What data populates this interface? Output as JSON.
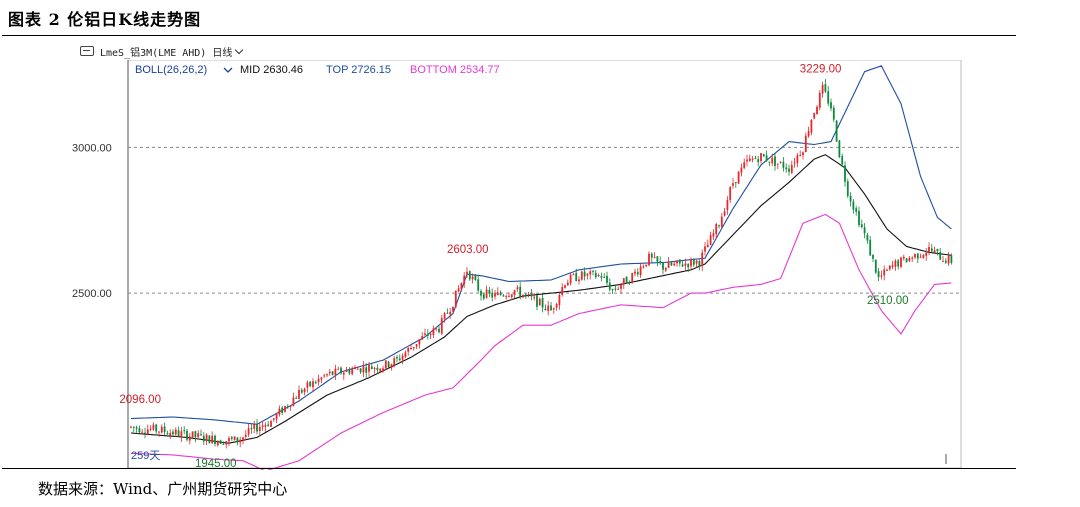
{
  "figure_title": "图表 2 伦铝日K线走势图",
  "toolbar": {
    "symbol": "LmeS_铝3M(LME AHD)",
    "period": "日线"
  },
  "indicator": {
    "name": "BOLL(26,26,2)",
    "mid_label": "MID 2630.46",
    "top_label": "TOP 2726.15",
    "bottom_label": "BOTTOM 2534.77"
  },
  "colors": {
    "up": "#e8262c",
    "down": "#0a8a3a",
    "mid": "#111111",
    "top": "#1f4fa0",
    "bottom": "#e43ad2",
    "annotation_high": "#d0202a",
    "annotation_low": "#1c7a2a",
    "axis_text": "#333333"
  },
  "footer": "数据来源：Wind、广州期货研究中心",
  "chart_data": {
    "type": "candlestick",
    "y_ticks": [
      "3000.00",
      "2500.00"
    ],
    "y_tick_values": [
      3000,
      2500
    ],
    "ylim": [
      1900,
      3300
    ],
    "bar_count_label": "259天",
    "grid": "horizontal dashed",
    "annotations": [
      {
        "text": "3229.00",
        "value": 3229,
        "kind": "high"
      },
      {
        "text": "2603.00",
        "value": 2603,
        "kind": "high"
      },
      {
        "text": "2096.00",
        "value": 2096,
        "kind": "high"
      },
      {
        "text": "2510.00",
        "value": 2510,
        "kind": "low"
      },
      {
        "text": "1945.00",
        "value": 1945,
        "kind": "low"
      }
    ],
    "close_anchors": [
      [
        0,
        2040
      ],
      [
        10,
        2030
      ],
      [
        25,
        2005
      ],
      [
        32,
        1995
      ],
      [
        38,
        1995
      ],
      [
        45,
        2040
      ],
      [
        50,
        2060
      ],
      [
        60,
        2160
      ],
      [
        70,
        2220
      ],
      [
        80,
        2240
      ],
      [
        90,
        2250
      ],
      [
        95,
        2270
      ],
      [
        103,
        2340
      ],
      [
        110,
        2380
      ],
      [
        115,
        2470
      ],
      [
        120,
        2580
      ],
      [
        125,
        2500
      ],
      [
        130,
        2490
      ],
      [
        137,
        2510
      ],
      [
        145,
        2470
      ],
      [
        150,
        2440
      ],
      [
        155,
        2540
      ],
      [
        160,
        2560
      ],
      [
        168,
        2560
      ],
      [
        172,
        2510
      ],
      [
        178,
        2550
      ],
      [
        185,
        2620
      ],
      [
        190,
        2590
      ],
      [
        197,
        2600
      ],
      [
        203,
        2610
      ],
      [
        210,
        2740
      ],
      [
        215,
        2880
      ],
      [
        220,
        2950
      ],
      [
        225,
        2970
      ],
      [
        230,
        2950
      ],
      [
        235,
        2930
      ],
      [
        240,
        3000
      ],
      [
        243,
        3100
      ],
      [
        247,
        3200
      ],
      [
        250,
        3140
      ],
      [
        253,
        2980
      ],
      [
        256,
        2850
      ],
      [
        262,
        2700
      ],
      [
        267,
        2550
      ],
      [
        273,
        2600
      ],
      [
        278,
        2620
      ],
      [
        285,
        2650
      ],
      [
        290,
        2620
      ],
      [
        293,
        2610
      ]
    ],
    "mid_anchors": [
      [
        0,
        2020
      ],
      [
        20,
        2005
      ],
      [
        35,
        1985
      ],
      [
        45,
        2005
      ],
      [
        55,
        2060
      ],
      [
        70,
        2150
      ],
      [
        85,
        2210
      ],
      [
        100,
        2280
      ],
      [
        112,
        2350
      ],
      [
        120,
        2420
      ],
      [
        130,
        2460
      ],
      [
        140,
        2490
      ],
      [
        150,
        2500
      ],
      [
        160,
        2510
      ],
      [
        175,
        2530
      ],
      [
        190,
        2560
      ],
      [
        200,
        2580
      ],
      [
        205,
        2600
      ],
      [
        215,
        2700
      ],
      [
        225,
        2800
      ],
      [
        235,
        2880
      ],
      [
        244,
        2960
      ],
      [
        248,
        2975
      ],
      [
        255,
        2930
      ],
      [
        262,
        2840
      ],
      [
        270,
        2720
      ],
      [
        277,
        2660
      ],
      [
        285,
        2640
      ],
      [
        293,
        2630
      ]
    ],
    "top_anchors": [
      [
        0,
        2070
      ],
      [
        15,
        2075
      ],
      [
        30,
        2065
      ],
      [
        45,
        2050
      ],
      [
        60,
        2130
      ],
      [
        75,
        2230
      ],
      [
        90,
        2270
      ],
      [
        105,
        2350
      ],
      [
        115,
        2430
      ],
      [
        120,
        2565
      ],
      [
        125,
        2560
      ],
      [
        135,
        2540
      ],
      [
        150,
        2545
      ],
      [
        160,
        2580
      ],
      [
        175,
        2600
      ],
      [
        190,
        2605
      ],
      [
        205,
        2620
      ],
      [
        215,
        2790
      ],
      [
        225,
        2940
      ],
      [
        235,
        3020
      ],
      [
        244,
        3010
      ],
      [
        250,
        3020
      ],
      [
        262,
        3260
      ],
      [
        268,
        3280
      ],
      [
        275,
        3150
      ],
      [
        282,
        2900
      ],
      [
        288,
        2760
      ],
      [
        293,
        2720
      ]
    ],
    "bottom_anchors": [
      [
        0,
        1950
      ],
      [
        15,
        1945
      ],
      [
        30,
        1930
      ],
      [
        40,
        1925
      ],
      [
        48,
        1890
      ],
      [
        60,
        1925
      ],
      [
        75,
        2020
      ],
      [
        90,
        2090
      ],
      [
        105,
        2150
      ],
      [
        115,
        2175
      ],
      [
        125,
        2270
      ],
      [
        130,
        2320
      ],
      [
        140,
        2390
      ],
      [
        150,
        2390
      ],
      [
        160,
        2430
      ],
      [
        175,
        2460
      ],
      [
        190,
        2450
      ],
      [
        200,
        2500
      ],
      [
        205,
        2500
      ],
      [
        215,
        2520
      ],
      [
        225,
        2530
      ],
      [
        232,
        2550
      ],
      [
        240,
        2740
      ],
      [
        248,
        2770
      ],
      [
        253,
        2740
      ],
      [
        260,
        2580
      ],
      [
        268,
        2440
      ],
      [
        275,
        2360
      ],
      [
        280,
        2440
      ],
      [
        287,
        2530
      ],
      [
        293,
        2535
      ]
    ]
  }
}
